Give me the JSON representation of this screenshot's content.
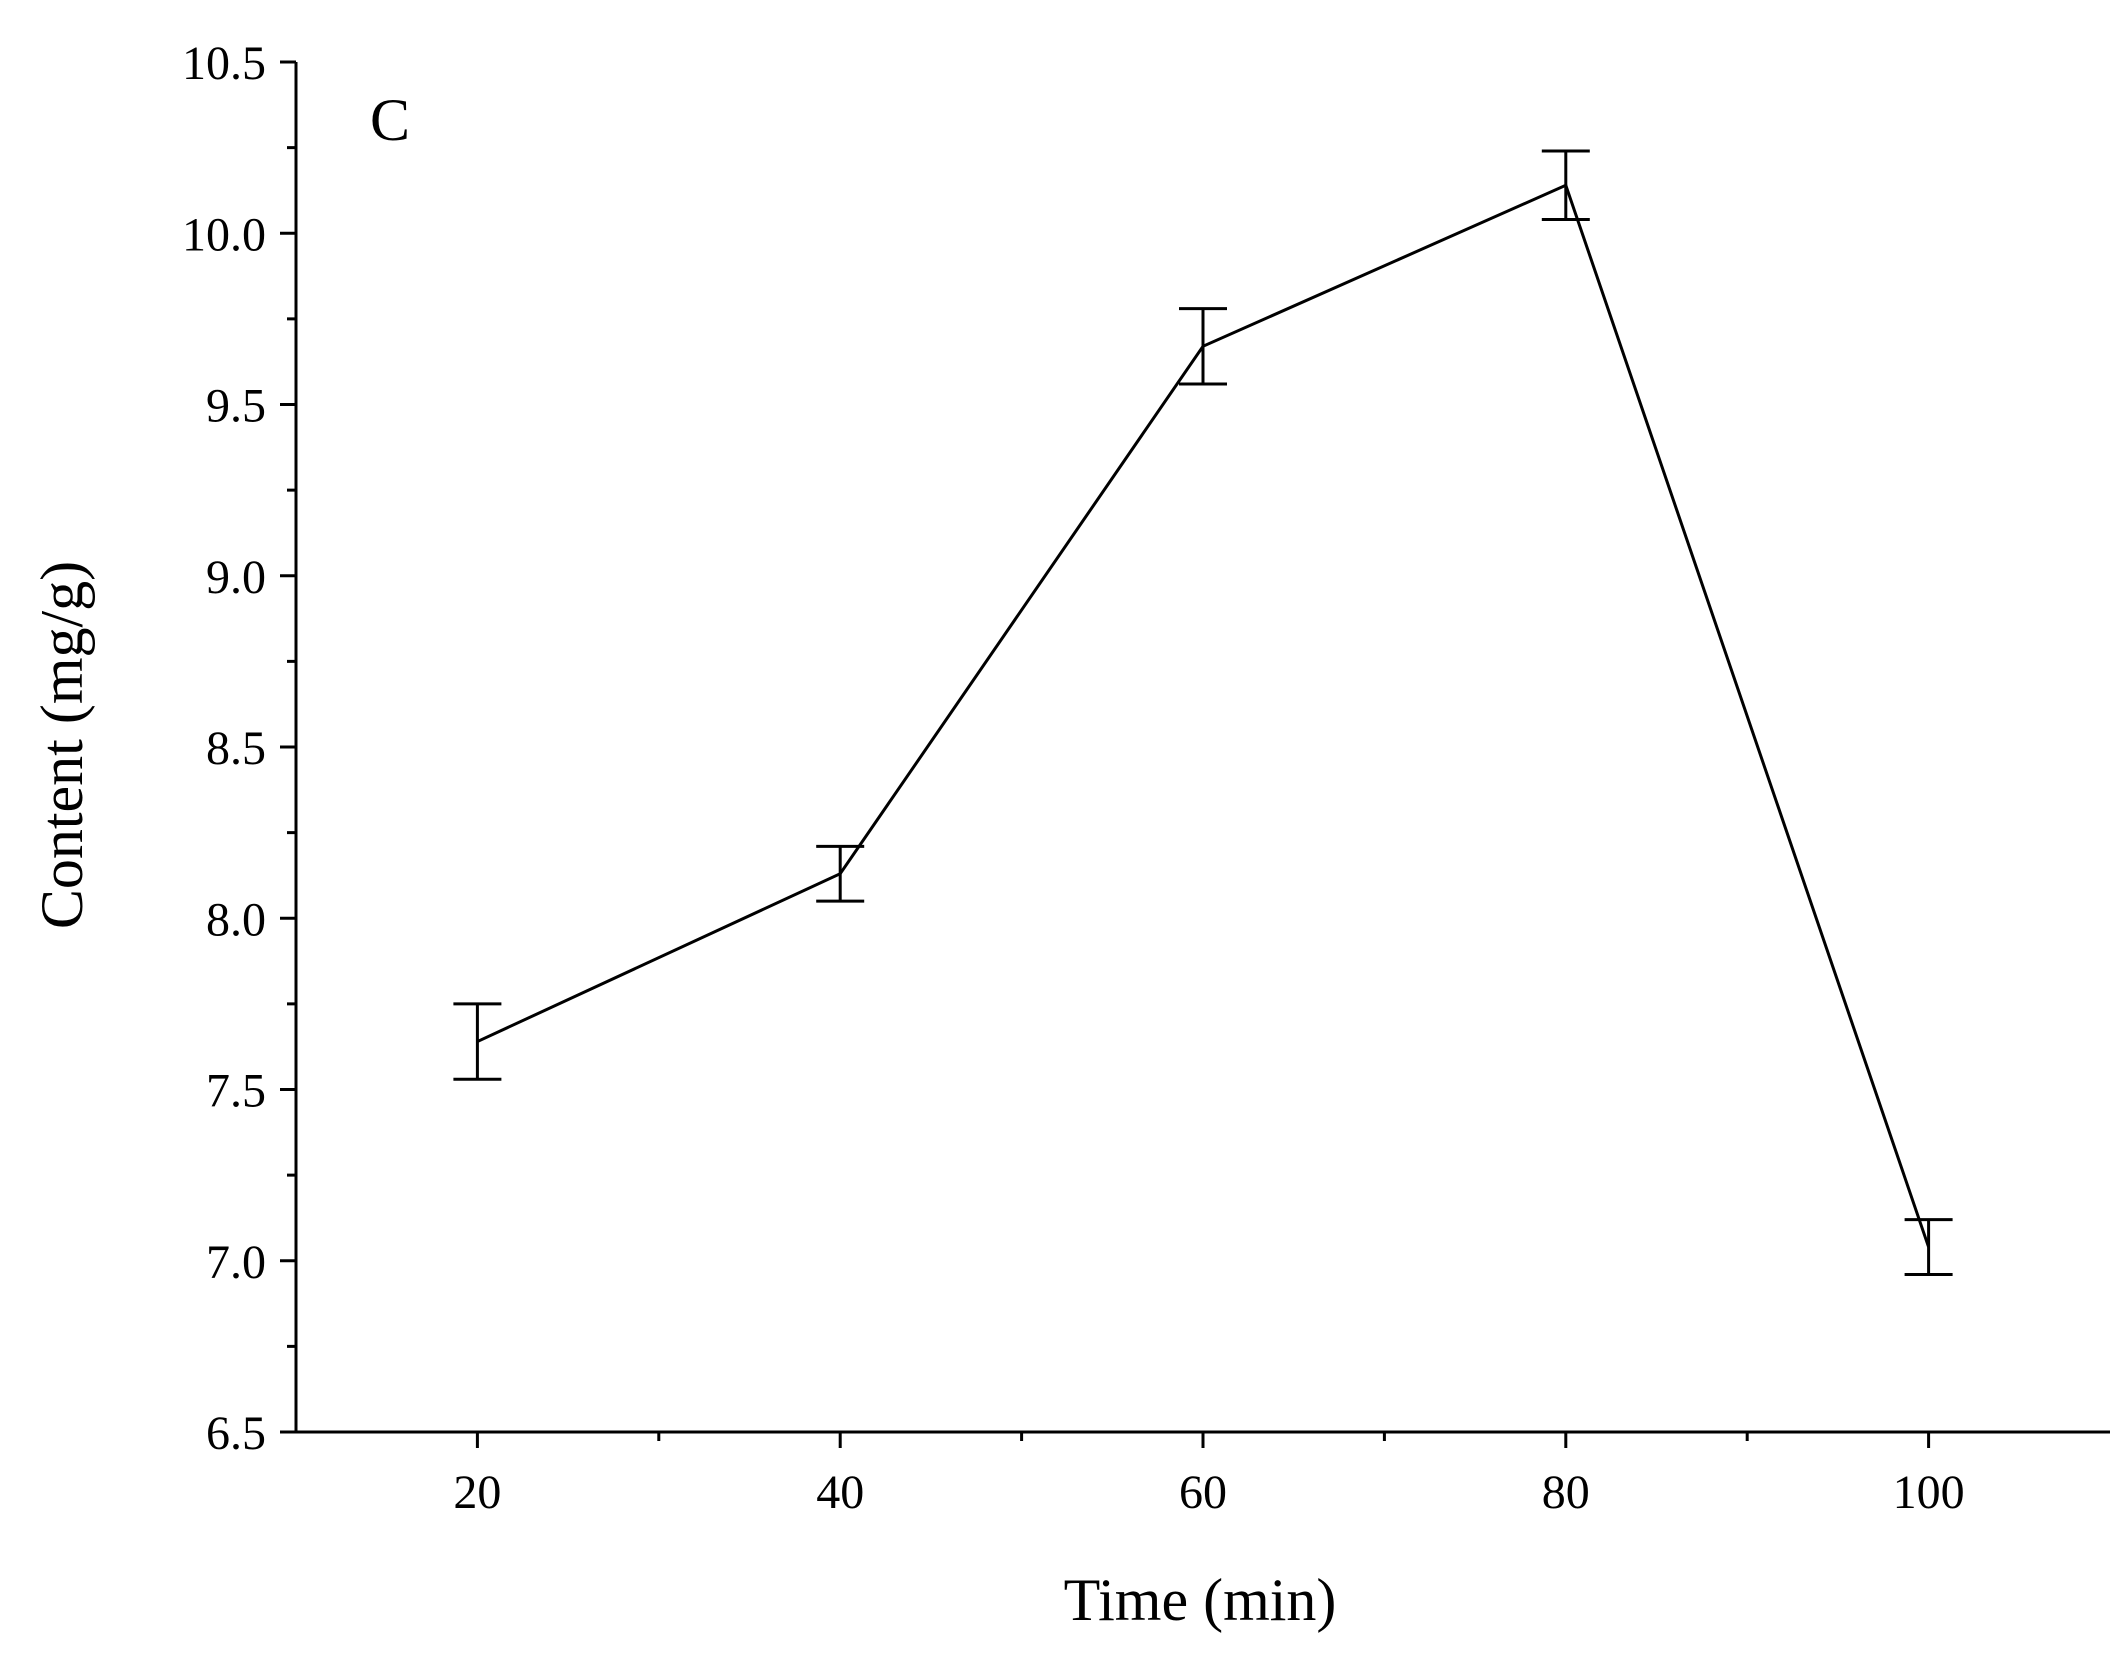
{
  "chart_data": {
    "type": "line",
    "panel_label": "C",
    "title": "",
    "xlabel": "Time (min)",
    "ylabel": "Content (mg/g)",
    "xlim": [
      10,
      110
    ],
    "ylim": [
      6.5,
      10.5
    ],
    "x_major_ticks": [
      20,
      40,
      60,
      80,
      100
    ],
    "x_minor_ticks": [
      30,
      50,
      70,
      90
    ],
    "x_tick_labels": [
      "20",
      "40",
      "60",
      "80",
      "100"
    ],
    "y_major_ticks": [
      6.5,
      7.0,
      7.5,
      8.0,
      8.5,
      9.0,
      9.5,
      10.0,
      10.5
    ],
    "y_minor_ticks": [
      6.75,
      7.25,
      7.75,
      8.25,
      8.75,
      9.25,
      9.75,
      10.25
    ],
    "y_tick_labels": [
      "6.5",
      "7.0",
      "7.5",
      "8.0",
      "8.5",
      "9.0",
      "9.5",
      "10.0",
      "10.5"
    ],
    "grid": false,
    "legend": "none",
    "series": [
      {
        "name": "Content",
        "x": [
          20,
          40,
          60,
          80,
          100
        ],
        "y": [
          7.64,
          8.13,
          9.67,
          10.14,
          7.04
        ],
        "error": [
          0.11,
          0.08,
          0.11,
          0.1,
          0.08
        ]
      }
    ]
  }
}
